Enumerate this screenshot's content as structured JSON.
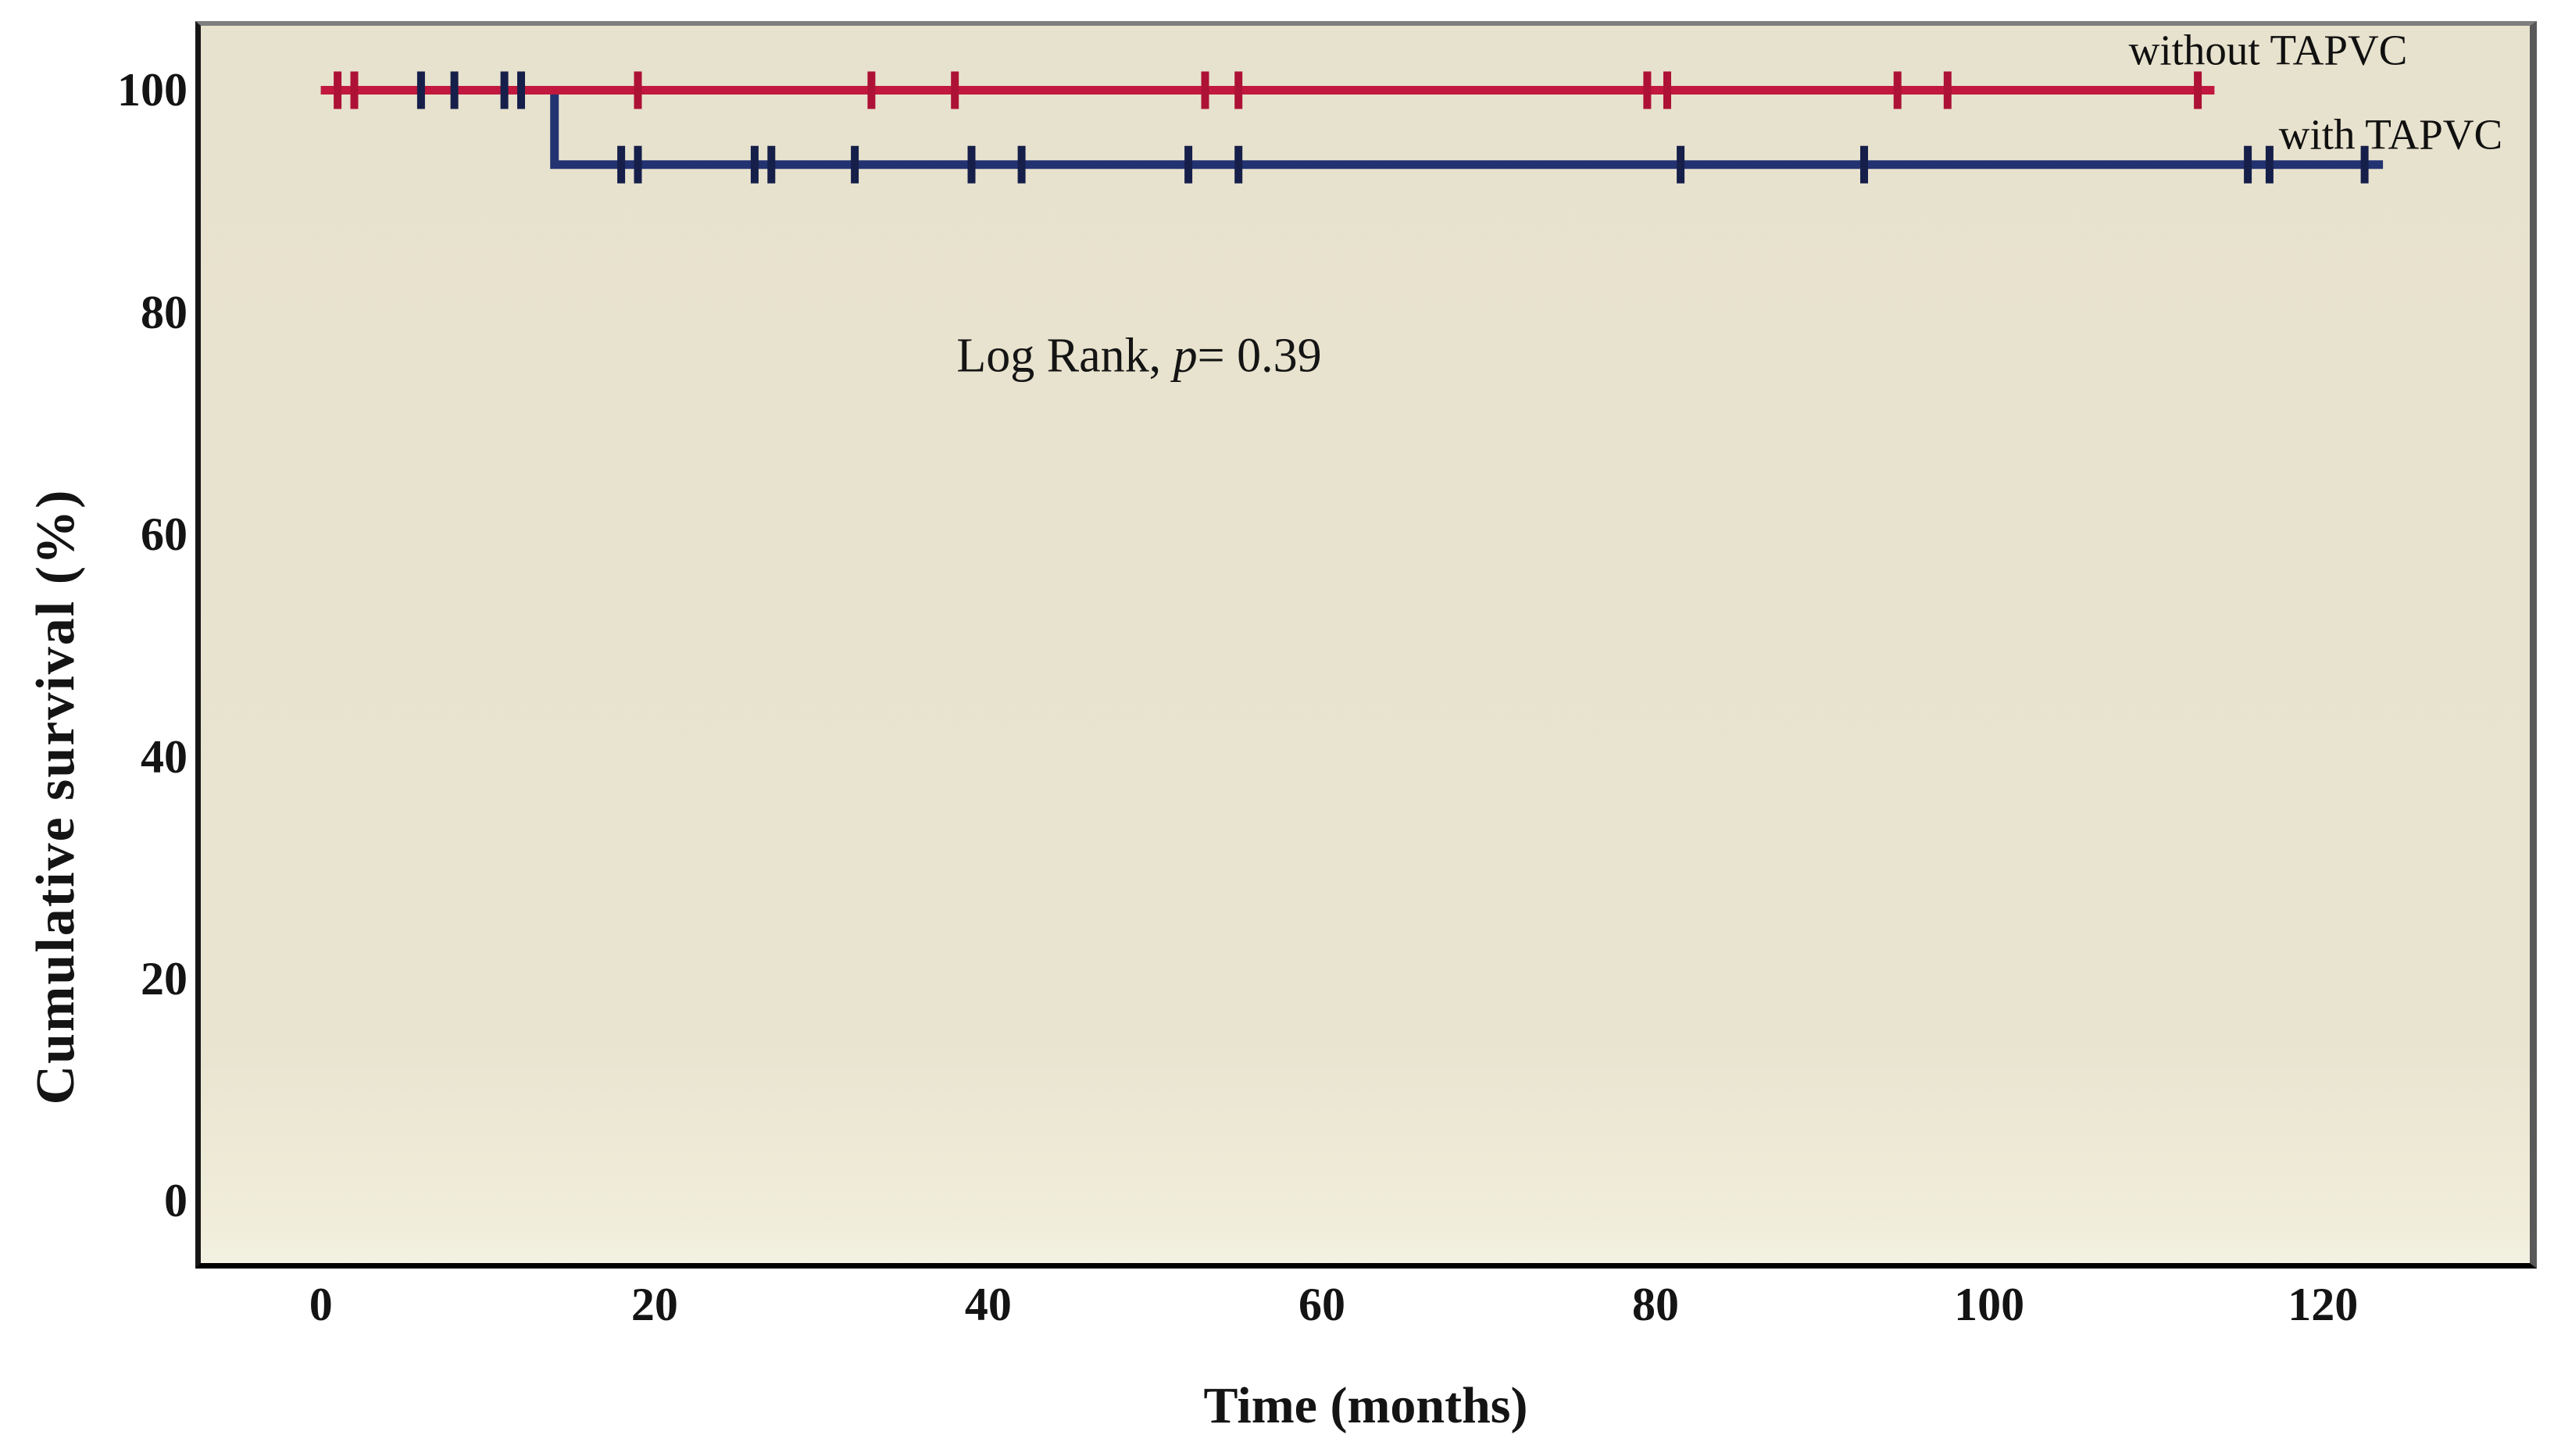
{
  "figure": {
    "y_axis_title": "Cumulative survival (%)",
    "x_axis_title": "Time (months)",
    "annotation": {
      "prefix": "Log Rank, ",
      "p_symbol": "p",
      "suffix": "= 0.39"
    },
    "series_labels": {
      "without": "without TAPVC",
      "with": "with TAPVC"
    },
    "colors": {
      "plot_background": "#e9e4d0",
      "without_tapvc_line": "#c2183f",
      "without_tapvc_censor": "#ad1136",
      "with_tapvc_line": "#233271",
      "with_tapvc_censor": "#161f4a",
      "text": "#141414"
    }
  },
  "chart_data": {
    "type": "line",
    "subtype": "kaplan_meier_step",
    "title": "",
    "xlabel": "Time (months)",
    "ylabel": "Cumulative survival (%)",
    "annotation": "Log Rank, p= 0.39",
    "grid": false,
    "legend_position": "inline-top-right",
    "x_ticks": [
      0,
      20,
      40,
      60,
      80,
      100,
      120
    ],
    "y_ticks": [
      0,
      20,
      40,
      60,
      80,
      100
    ],
    "xlim": [
      -7.2,
      132.4
    ],
    "ylim": [
      -5.6,
      105.8
    ],
    "series": [
      {
        "name": "without TAPVC",
        "color": "#c2183f",
        "censor_color": "#ad1136",
        "line_width": 11,
        "steps": [
          [
            0,
            100
          ],
          [
            113.5,
            100
          ]
        ],
        "censors": [
          [
            1,
            100
          ],
          [
            2,
            100
          ],
          [
            19,
            100
          ],
          [
            33,
            100
          ],
          [
            38,
            100
          ],
          [
            53,
            100
          ],
          [
            55,
            100
          ],
          [
            79.5,
            100
          ],
          [
            80.7,
            100
          ],
          [
            94.5,
            100
          ],
          [
            97.5,
            100
          ],
          [
            112.5,
            100
          ]
        ]
      },
      {
        "name": "with TAPVC",
        "color": "#233271",
        "censor_color": "#161f4a",
        "line_width": 11,
        "steps": [
          [
            0,
            100
          ],
          [
            14,
            100
          ],
          [
            14,
            93.3
          ],
          [
            123.6,
            93.3
          ]
        ],
        "censors": [
          [
            6,
            100
          ],
          [
            8,
            100
          ],
          [
            11,
            100
          ],
          [
            12,
            100
          ],
          [
            18,
            93.3
          ],
          [
            19,
            93.3
          ],
          [
            26,
            93.3
          ],
          [
            27,
            93.3
          ],
          [
            32,
            93.3
          ],
          [
            39,
            93.3
          ],
          [
            42,
            93.3
          ],
          [
            52,
            93.3
          ],
          [
            55,
            93.3
          ],
          [
            81.5,
            93.3
          ],
          [
            92.5,
            93.3
          ],
          [
            115.5,
            93.3
          ],
          [
            116.8,
            93.3
          ],
          [
            122.5,
            93.3
          ]
        ]
      }
    ]
  }
}
